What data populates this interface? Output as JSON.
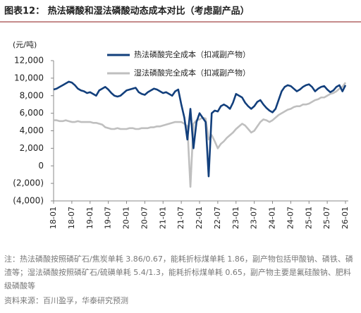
{
  "chart_data": {
    "type": "line",
    "title": "图表12：  热法磷酸和湿法磷酸动态成本对比（考虑副产品）",
    "y_label": "(元/吨)",
    "categories": [
      "18-01",
      null,
      null,
      null,
      null,
      null,
      "18-07",
      null,
      null,
      null,
      null,
      null,
      "19-01",
      null,
      null,
      null,
      null,
      null,
      "19-07",
      null,
      null,
      null,
      null,
      null,
      "20-01",
      null,
      null,
      null,
      null,
      null,
      "20-07",
      null,
      null,
      null,
      null,
      null,
      "21-01",
      null,
      null,
      null,
      null,
      null,
      "21-07",
      null,
      null,
      null,
      null,
      null,
      "22-01",
      null,
      null,
      null,
      null,
      null,
      "22-07",
      null,
      null,
      null,
      null,
      null,
      "23-01",
      null,
      null,
      null,
      null,
      null,
      "23-07",
      null,
      null,
      null,
      null,
      null,
      "24-01",
      null,
      null,
      null,
      null,
      null,
      "24-07",
      null,
      null,
      null,
      null,
      null,
      "25-01",
      null,
      null,
      null,
      null,
      null,
      "25-07",
      null,
      null,
      null,
      null,
      null,
      "26-01"
    ],
    "series": [
      {
        "name": "热法磷酸完全成本（扣减副产物）",
        "color": "#123f7c",
        "values": [
          8700,
          8800,
          9000,
          9200,
          9400,
          9600,
          9500,
          9200,
          8800,
          8600,
          8500,
          8300,
          8400,
          8200,
          8000,
          8600,
          8800,
          9000,
          8700,
          8300,
          8000,
          7900,
          8000,
          8300,
          8600,
          8700,
          8800,
          8900,
          8400,
          8200,
          8100,
          8400,
          8600,
          8800,
          8700,
          8500,
          8300,
          8400,
          8200,
          8000,
          8500,
          8700,
          7000,
          5500,
          3000,
          6500,
          2000,
          5000,
          6000,
          5500,
          5000,
          -1200,
          6000,
          6300,
          6200,
          6800,
          7000,
          6800,
          6500,
          7200,
          8200,
          8000,
          7800,
          7200,
          6800,
          6500,
          6800,
          7300,
          7500,
          7000,
          6600,
          6300,
          6100,
          6500,
          7500,
          8500,
          9000,
          9200,
          9100,
          8800,
          8500,
          8700,
          9000,
          9200,
          9300,
          9000,
          8500,
          8800,
          9000,
          9100,
          8700,
          8400,
          8600,
          9000,
          9200,
          8500,
          9200
        ]
      },
      {
        "name": "湿法磷酸完全成本（扣减副产物）",
        "color": "#bfbfbf",
        "values": [
          5200,
          5200,
          5100,
          5100,
          5200,
          5100,
          5000,
          5000,
          5100,
          5000,
          5000,
          5000,
          5000,
          4900,
          4900,
          4800,
          4700,
          4400,
          4300,
          4200,
          4200,
          4300,
          4200,
          4200,
          4200,
          4300,
          4300,
          4200,
          4200,
          4300,
          4300,
          4300,
          4400,
          4400,
          4500,
          4500,
          4600,
          4700,
          4800,
          4900,
          5000,
          5000,
          5000,
          4800,
          4500,
          -2400,
          4800,
          5200,
          5300,
          5500,
          5400,
          3000,
          3500,
          2800,
          2000,
          2500,
          2800,
          3200,
          3500,
          3800,
          4200,
          4500,
          4800,
          4600,
          4200,
          3800,
          4000,
          4500,
          5000,
          5300,
          5200,
          5000,
          5200,
          5500,
          5800,
          6000,
          6200,
          6400,
          6500,
          6700,
          6800,
          6800,
          7000,
          7000,
          7100,
          7300,
          7500,
          7600,
          7800,
          7800,
          8000,
          8200,
          8300,
          8500,
          8800,
          9000,
          9500
        ]
      }
    ],
    "ylim": [
      -4000,
      12000
    ],
    "yticks": [
      {
        "value": -4000,
        "label": "(4,000)"
      },
      {
        "value": -2000,
        "label": "(2,000)"
      },
      0,
      {
        "value": 2000,
        "label": "2,000"
      },
      {
        "value": 4000,
        "label": "4,000"
      },
      {
        "value": 6000,
        "label": "6,000"
      },
      {
        "value": 8000,
        "label": "8,000"
      },
      {
        "value": 10000,
        "label": "10,000"
      },
      {
        "value": 12000,
        "label": "12,000"
      }
    ],
    "note": "注：热法磷酸按照磷矿石/焦炭单耗 3.86/0.67，能耗折标煤单耗 1.86，副产物包括甲酸钠、磷铁、磷渣等；湿法磷酸按照磷矿石/硫磺单耗 5.4/1.3，能耗折标煤单耗 0.65，副产物主要是氟硅酸钠、肥料级磷酸等",
    "source": "资料来源：百川盈孚，华泰研究预测"
  }
}
